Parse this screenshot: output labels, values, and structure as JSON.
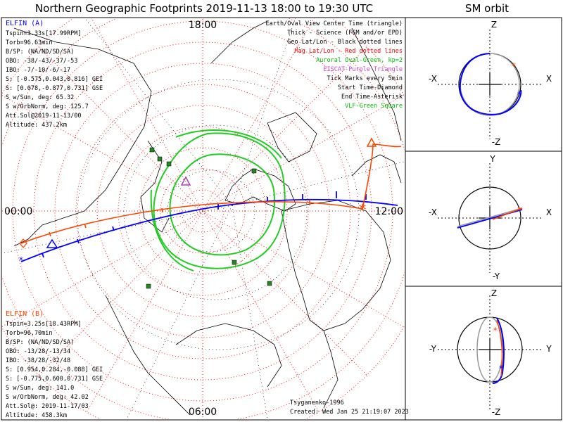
{
  "title": "Northern Geographic Footprints 2019-11-13 18:00 to 19:30 UTC",
  "orbit_title": "SM orbit",
  "clock": {
    "top": "18:00",
    "left": "00:00",
    "right": "12:00",
    "bottom": "06:00"
  },
  "elfin_a": {
    "name": "ELFIN (A)",
    "lines": [
      "Tspin=3.33s[17.99RPM]",
      "Torb=96.63min",
      "B/SP: (NA/ND/SD/SA)",
      "OBO: -38/-43/-37/-53",
      "IBO: -7/-10/-6/-17",
      "S: [-0.575,0.043,0.816] GEI",
      "S: [0.078,-0.877,0.731] GSE",
      "S w/Sun, deg: 65.32",
      "S w/OrbNorm, deg: 125.7",
      "Att.Sol@2019-11-13/00",
      "Altitude: 437.2km"
    ],
    "color": "#0000ff"
  },
  "elfin_b": {
    "name": "ELFIN (B)",
    "lines": [
      "Tspin=3.25s[18.43RPM]",
      "Torb=96.70min",
      "B/SP: (NA/ND/SD/SA)",
      "OBO: -13/28/-13/34",
      "IBO: -38/28/-32/48",
      "S: [0.954,0.284,-0.088] GEI",
      "S: [-0.775,0.600,0.731] GSE",
      "S w/Sun, deg: 141.0",
      "S w/OrbNorm, deg: 42.02",
      "Att.Sol@: 2019-11-17/03",
      "Altitude: 458.3km"
    ],
    "color": "#ff4500"
  },
  "legend": [
    {
      "text": "Earth/Oval View Center Time (triangle)",
      "color": "#000000"
    },
    {
      "text": "Thick - Science (FGM and/or EPD)",
      "color": "#000000"
    },
    {
      "text": "Geo Lat/Lon - Black dotted lines",
      "color": "#000000"
    },
    {
      "text": "Mag Lat/Lon - Red dotted lines",
      "color": "#ff0000"
    },
    {
      "text": "Auroral Oval-Green, kp=2",
      "color": "#00c000"
    },
    {
      "text": "EISCAT-Purple Triangle",
      "color": "#cc44cc"
    },
    {
      "text": "Tick Marks every 5min",
      "color": "#000000"
    },
    {
      "text": "Start Time-Diamond",
      "color": "#000000"
    },
    {
      "text": "End Time-Asterisk",
      "color": "#000000"
    },
    {
      "text": "VLF-Green Square",
      "color": "#00c000"
    }
  ],
  "footer": {
    "author": "Tsyganenko-1996",
    "created": "Created: Wed Jan 25 21:19:07 2023"
  },
  "orbit_panels": [
    {
      "top": "Z",
      "bottom": "-Z",
      "left": "-X",
      "right": "X"
    },
    {
      "top": "Y",
      "bottom": "-Y",
      "left": "-X",
      "right": "X"
    },
    {
      "top": "Z",
      "bottom": "-Z",
      "left": "-Y",
      "right": "Y"
    }
  ],
  "colors": {
    "elfin_a": "#0000ff",
    "elfin_b": "#ff4500",
    "oval": "#22cc22",
    "mag_grid": "#ff0000",
    "vlf": "#228822",
    "eiscat": "#aa44aa"
  }
}
